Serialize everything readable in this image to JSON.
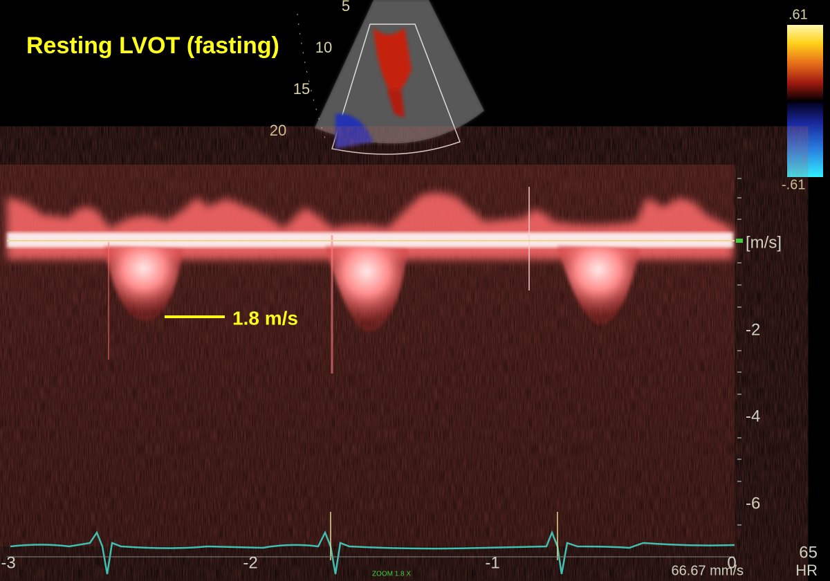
{
  "title": "Resting LVOT (fasting)",
  "annotation": "1.8 m/s",
  "sector": {
    "depth_labels": [
      "5",
      "10",
      "15",
      "20"
    ]
  },
  "color_scale": {
    "top": ".61",
    "bottom": "-.61"
  },
  "doppler": {
    "unit": "[m/s]",
    "velocity_labels": [
      "-2",
      "-4",
      "-6"
    ],
    "time_labels": [
      "-3",
      "-2",
      "-1",
      "0"
    ]
  },
  "footer": {
    "sweep": "66.67 mm/s",
    "zoom": "ZOOM 1.8 X",
    "hr_value": "65",
    "hr_label": "HR"
  }
}
